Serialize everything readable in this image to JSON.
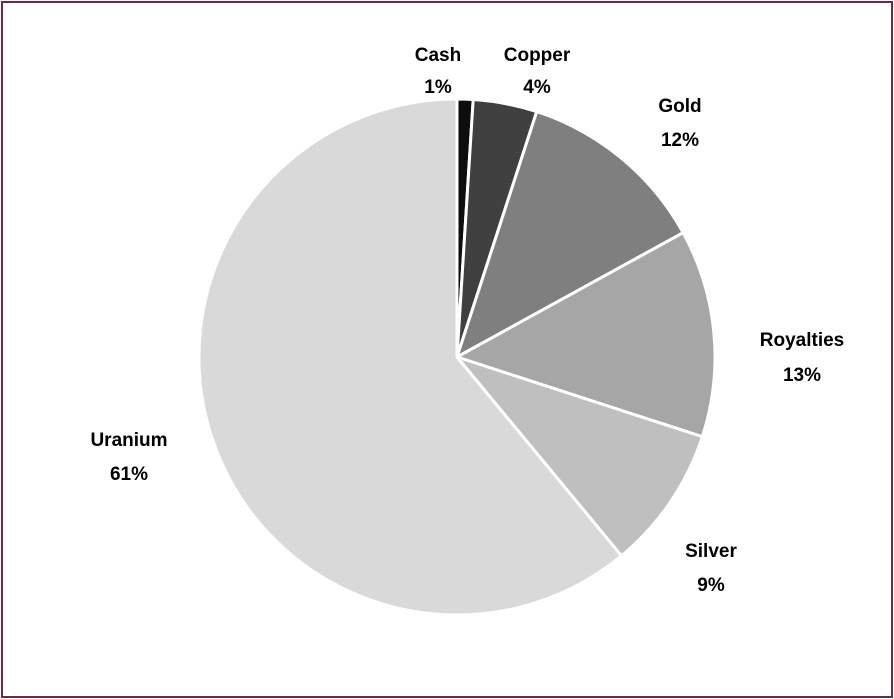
{
  "chart_data": {
    "type": "pie",
    "title": "",
    "slices": [
      {
        "name": "Cash",
        "value": 1,
        "label": "1%",
        "color": "#0d0d0d"
      },
      {
        "name": "Copper",
        "value": 4,
        "label": "4%",
        "color": "#404040"
      },
      {
        "name": "Gold",
        "value": 12,
        "label": "12%",
        "color": "#7f7f7f"
      },
      {
        "name": "Royalties",
        "value": 13,
        "label": "13%",
        "color": "#a6a6a6"
      },
      {
        "name": "Silver",
        "value": 9,
        "label": "9%",
        "color": "#bfbfbf"
      },
      {
        "name": "Uranium",
        "value": 61,
        "label": "61%",
        "color": "#d9d9d9"
      }
    ],
    "start_angle": "12 o'clock",
    "direction": "clockwise",
    "legend": "none",
    "data_labels": "category name and percentage, outside the pie"
  },
  "frame": {
    "border_color": "#6b2a3e"
  }
}
